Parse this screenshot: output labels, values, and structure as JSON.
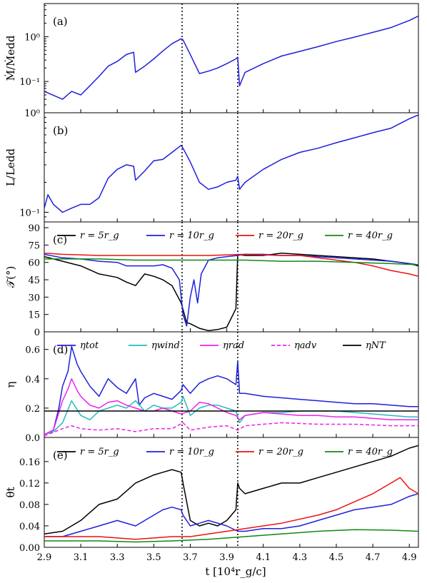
{
  "figure": {
    "xlabel": "t [10⁴r_g/c]",
    "xticks": [
      "2.9",
      "3.1",
      "3.3",
      "3.5",
      "3.7",
      "3.9",
      "4.1",
      "4.3",
      "4.5",
      "4.7",
      "4.9"
    ],
    "xlim": [
      2.9,
      4.95
    ],
    "vlines_x": [
      3.655,
      3.96
    ]
  },
  "chart_data": [
    {
      "type": "line",
      "panel_label": "(a)",
      "ylabel": "Ṁ/Ṁedd",
      "yscale": "log",
      "ylim": [
        0.02,
        5.5
      ],
      "yticks": [
        "10⁻¹",
        "10⁰"
      ],
      "series": [
        {
          "color": "#1f1fdd",
          "x": [
            2.9,
            3.0,
            3.05,
            3.1,
            3.15,
            3.2,
            3.25,
            3.3,
            3.35,
            3.39,
            3.4,
            3.45,
            3.5,
            3.55,
            3.6,
            3.65,
            3.66,
            3.7,
            3.75,
            3.8,
            3.85,
            3.9,
            3.95,
            3.96,
            3.97,
            4.0,
            4.1,
            4.2,
            4.3,
            4.4,
            4.5,
            4.6,
            4.7,
            4.8,
            4.9,
            4.95
          ],
          "y": [
            0.06,
            0.04,
            0.06,
            0.05,
            0.08,
            0.13,
            0.22,
            0.28,
            0.4,
            0.45,
            0.16,
            0.22,
            0.32,
            0.48,
            0.7,
            0.9,
            0.85,
            0.4,
            0.15,
            0.17,
            0.2,
            0.25,
            0.32,
            0.35,
            0.08,
            0.16,
            0.25,
            0.37,
            0.47,
            0.6,
            0.78,
            0.98,
            1.25,
            1.6,
            2.3,
            2.9
          ]
        }
      ]
    },
    {
      "type": "line",
      "panel_label": "(b)",
      "ylabel": "L/Ledd",
      "yscale": "log",
      "ylim": [
        0.08,
        1.0
      ],
      "yticks": [
        "10⁻¹",
        "10⁰"
      ],
      "series": [
        {
          "color": "#1f1fdd",
          "x": [
            2.9,
            2.92,
            2.95,
            3.0,
            3.05,
            3.1,
            3.15,
            3.2,
            3.25,
            3.3,
            3.35,
            3.39,
            3.4,
            3.45,
            3.5,
            3.55,
            3.6,
            3.65,
            3.66,
            3.7,
            3.75,
            3.8,
            3.85,
            3.9,
            3.95,
            3.96,
            3.97,
            4.0,
            4.1,
            4.2,
            4.3,
            4.4,
            4.5,
            4.6,
            4.7,
            4.8,
            4.9,
            4.95
          ],
          "y": [
            0.11,
            0.15,
            0.12,
            0.1,
            0.11,
            0.12,
            0.12,
            0.14,
            0.22,
            0.27,
            0.3,
            0.29,
            0.21,
            0.26,
            0.33,
            0.34,
            0.4,
            0.47,
            0.44,
            0.32,
            0.2,
            0.17,
            0.18,
            0.2,
            0.21,
            0.23,
            0.17,
            0.2,
            0.27,
            0.34,
            0.4,
            0.44,
            0.5,
            0.56,
            0.63,
            0.7,
            0.87,
            0.95
          ]
        }
      ]
    },
    {
      "type": "line",
      "panel_label": "(c)",
      "ylabel": "𝒯(°)",
      "ylim": [
        0,
        95
      ],
      "yticks": [
        "0",
        "15",
        "30",
        "45",
        "60",
        "75",
        "90"
      ],
      "legend": [
        "r = 5r_g",
        "r = 10r_g",
        "r = 20r_g",
        "r = 40r_g"
      ],
      "series": [
        {
          "name": "r = 5r_g",
          "color": "#000000",
          "x": [
            2.9,
            3.0,
            3.1,
            3.2,
            3.3,
            3.35,
            3.4,
            3.45,
            3.5,
            3.55,
            3.6,
            3.65,
            3.68,
            3.7,
            3.75,
            3.8,
            3.85,
            3.9,
            3.95,
            3.96,
            4.0,
            4.1,
            4.2,
            4.3,
            4.4,
            4.5,
            4.6,
            4.7,
            4.8,
            4.9,
            4.95
          ],
          "y": [
            65,
            61,
            57,
            50,
            47,
            43,
            40,
            50,
            48,
            45,
            40,
            25,
            8,
            7,
            3,
            1,
            2,
            4,
            20,
            67,
            66,
            66,
            68,
            67,
            66,
            65,
            64,
            63,
            61,
            59,
            57
          ]
        },
        {
          "name": "r = 10r_g",
          "color": "#1f1fdd",
          "x": [
            2.9,
            3.0,
            3.1,
            3.2,
            3.3,
            3.35,
            3.4,
            3.5,
            3.55,
            3.6,
            3.64,
            3.66,
            3.68,
            3.7,
            3.72,
            3.74,
            3.76,
            3.8,
            3.85,
            3.9,
            3.96,
            4.0,
            4.1,
            4.2,
            4.3,
            4.4,
            4.5,
            4.6,
            4.7,
            4.8,
            4.9,
            4.95
          ],
          "y": [
            67,
            64,
            63,
            61,
            60,
            57,
            57,
            57,
            58,
            55,
            45,
            15,
            5,
            30,
            45,
            25,
            50,
            62,
            64,
            65,
            66,
            67,
            67,
            66,
            66,
            65,
            64,
            63,
            62,
            61,
            59,
            58
          ]
        },
        {
          "name": "r = 20r_g",
          "color": "#ee1111",
          "x": [
            2.9,
            3.0,
            3.2,
            3.4,
            3.6,
            3.8,
            4.0,
            4.2,
            4.3,
            4.4,
            4.5,
            4.6,
            4.7,
            4.8,
            4.9,
            4.95
          ],
          "y": [
            68,
            67,
            66,
            66,
            66,
            66,
            67,
            66,
            66,
            64,
            62,
            60,
            57,
            53,
            50,
            48
          ]
        },
        {
          "name": "r = 40r_g",
          "color": "#118811",
          "x": [
            2.9,
            3.0,
            3.2,
            3.4,
            3.6,
            3.8,
            4.0,
            4.2,
            4.4,
            4.6,
            4.8,
            4.95
          ],
          "y": [
            63,
            63,
            63,
            62,
            62,
            62,
            62,
            61,
            61,
            60,
            59,
            58
          ]
        }
      ]
    },
    {
      "type": "line",
      "panel_label": "(d)",
      "ylabel": "η",
      "ylim": [
        0,
        0.72
      ],
      "yticks": [
        "0.0",
        "0.2",
        "0.4",
        "0.6"
      ],
      "legend": [
        "ηtot",
        "ηwind",
        "ηrad",
        "ηadv",
        "ηNT"
      ],
      "series": [
        {
          "name": "ηtot",
          "color": "#1f1fdd",
          "x": [
            2.9,
            2.95,
            2.98,
            3.0,
            3.03,
            3.05,
            3.08,
            3.1,
            3.15,
            3.2,
            3.25,
            3.3,
            3.35,
            3.4,
            3.42,
            3.45,
            3.5,
            3.55,
            3.6,
            3.65,
            3.66,
            3.7,
            3.75,
            3.8,
            3.85,
            3.9,
            3.95,
            3.96,
            3.97,
            4.0,
            4.1,
            4.2,
            4.3,
            4.4,
            4.5,
            4.6,
            4.7,
            4.8,
            4.9,
            4.95
          ],
          "y": [
            0.02,
            0.05,
            0.2,
            0.35,
            0.45,
            0.62,
            0.5,
            0.45,
            0.35,
            0.28,
            0.4,
            0.34,
            0.3,
            0.4,
            0.22,
            0.27,
            0.3,
            0.28,
            0.26,
            0.32,
            0.36,
            0.3,
            0.37,
            0.4,
            0.42,
            0.4,
            0.36,
            0.52,
            0.3,
            0.3,
            0.28,
            0.27,
            0.26,
            0.25,
            0.24,
            0.23,
            0.23,
            0.22,
            0.21,
            0.21
          ]
        },
        {
          "name": "ηwind",
          "color": "#22bbbb",
          "x": [
            2.9,
            2.95,
            3.0,
            3.05,
            3.1,
            3.15,
            3.2,
            3.3,
            3.35,
            3.4,
            3.45,
            3.5,
            3.55,
            3.6,
            3.65,
            3.66,
            3.7,
            3.75,
            3.8,
            3.85,
            3.9,
            3.95,
            3.97,
            4.0,
            4.1,
            4.2,
            4.3,
            4.4,
            4.5,
            4.6,
            4.7,
            4.8,
            4.9,
            4.95
          ],
          "y": [
            0.02,
            0.04,
            0.1,
            0.25,
            0.15,
            0.12,
            0.18,
            0.22,
            0.2,
            0.25,
            0.18,
            0.22,
            0.2,
            0.2,
            0.24,
            0.28,
            0.15,
            0.2,
            0.22,
            0.22,
            0.2,
            0.18,
            0.1,
            0.15,
            0.17,
            0.17,
            0.18,
            0.18,
            0.18,
            0.17,
            0.16,
            0.15,
            0.14,
            0.14
          ]
        },
        {
          "name": "ηrad",
          "color": "#ee22ee",
          "x": [
            2.9,
            2.95,
            3.0,
            3.03,
            3.05,
            3.08,
            3.1,
            3.15,
            3.2,
            3.25,
            3.3,
            3.35,
            3.4,
            3.45,
            3.5,
            3.55,
            3.6,
            3.65,
            3.7,
            3.75,
            3.8,
            3.85,
            3.9,
            3.95,
            3.97,
            4.0,
            4.1,
            4.2,
            4.3,
            4.4,
            4.5,
            4.6,
            4.7,
            4.8,
            4.9,
            4.95
          ],
          "y": [
            0.02,
            0.05,
            0.25,
            0.33,
            0.4,
            0.32,
            0.28,
            0.22,
            0.2,
            0.24,
            0.25,
            0.22,
            0.2,
            0.18,
            0.18,
            0.2,
            0.18,
            0.16,
            0.18,
            0.24,
            0.23,
            0.2,
            0.17,
            0.15,
            0.12,
            0.15,
            0.17,
            0.16,
            0.15,
            0.15,
            0.14,
            0.14,
            0.13,
            0.12,
            0.12,
            0.12
          ]
        },
        {
          "name": "ηadv",
          "color": "#ee22ee",
          "dashed": true,
          "x": [
            2.9,
            3.0,
            3.05,
            3.1,
            3.2,
            3.3,
            3.4,
            3.5,
            3.6,
            3.66,
            3.7,
            3.8,
            3.9,
            3.96,
            4.0,
            4.2,
            4.4,
            4.6,
            4.8,
            4.95
          ],
          "y": [
            0.01,
            0.06,
            0.08,
            0.06,
            0.05,
            0.06,
            0.04,
            0.06,
            0.06,
            0.1,
            0.05,
            0.07,
            0.08,
            0.05,
            0.08,
            0.1,
            0.09,
            0.09,
            0.08,
            0.08
          ]
        },
        {
          "name": "ηNT",
          "color": "#000000",
          "x": [
            2.9,
            4.95
          ],
          "y": [
            0.18,
            0.18
          ]
        }
      ]
    },
    {
      "type": "line",
      "panel_label": "(e)",
      "ylabel": "θt",
      "ylim": [
        0,
        0.205
      ],
      "yticks": [
        "0.00",
        "0.04",
        "0.08",
        "0.12",
        "0.16"
      ],
      "legend": [
        "r = 5r_g",
        "r = 10r_g",
        "r = 20r_g",
        "r = 40r_g"
      ],
      "series": [
        {
          "name": "r = 5r_g",
          "color": "#000000",
          "x": [
            2.9,
            3.0,
            3.1,
            3.15,
            3.2,
            3.3,
            3.4,
            3.5,
            3.55,
            3.6,
            3.65,
            3.66,
            3.7,
            3.75,
            3.8,
            3.85,
            3.9,
            3.95,
            3.96,
            3.97,
            4.0,
            4.1,
            4.2,
            4.3,
            4.4,
            4.5,
            4.6,
            4.7,
            4.8,
            4.9,
            4.95
          ],
          "y": [
            0.025,
            0.03,
            0.05,
            0.065,
            0.08,
            0.09,
            0.12,
            0.135,
            0.14,
            0.145,
            0.14,
            0.12,
            0.05,
            0.04,
            0.045,
            0.04,
            0.05,
            0.07,
            0.12,
            0.11,
            0.1,
            0.11,
            0.12,
            0.12,
            0.13,
            0.14,
            0.15,
            0.16,
            0.17,
            0.185,
            0.19
          ]
        },
        {
          "name": "r = 10r_g",
          "color": "#1f1fdd",
          "x": [
            2.9,
            3.0,
            3.1,
            3.2,
            3.3,
            3.4,
            3.5,
            3.55,
            3.6,
            3.65,
            3.66,
            3.7,
            3.75,
            3.8,
            3.9,
            3.96,
            4.0,
            4.1,
            4.2,
            4.3,
            4.4,
            4.5,
            4.6,
            4.7,
            4.8,
            4.9,
            4.95
          ],
          "y": [
            0.02,
            0.02,
            0.03,
            0.04,
            0.05,
            0.04,
            0.06,
            0.07,
            0.075,
            0.07,
            0.06,
            0.04,
            0.045,
            0.05,
            0.04,
            0.03,
            0.03,
            0.035,
            0.035,
            0.04,
            0.05,
            0.06,
            0.07,
            0.075,
            0.08,
            0.095,
            0.1
          ]
        },
        {
          "name": "r = 20r_g",
          "color": "#ee1111",
          "x": [
            2.9,
            3.0,
            3.2,
            3.4,
            3.6,
            3.7,
            3.8,
            3.9,
            4.0,
            4.2,
            4.4,
            4.5,
            4.6,
            4.7,
            4.8,
            4.85,
            4.9,
            4.95
          ],
          "y": [
            0.02,
            0.02,
            0.02,
            0.015,
            0.02,
            0.02,
            0.025,
            0.03,
            0.035,
            0.045,
            0.06,
            0.07,
            0.085,
            0.1,
            0.12,
            0.13,
            0.11,
            0.1
          ]
        },
        {
          "name": "r = 40r_g",
          "color": "#118811",
          "x": [
            2.9,
            3.0,
            3.2,
            3.4,
            3.6,
            3.8,
            4.0,
            4.2,
            4.4,
            4.6,
            4.8,
            4.95
          ],
          "y": [
            0.012,
            0.012,
            0.012,
            0.01,
            0.012,
            0.015,
            0.02,
            0.025,
            0.03,
            0.033,
            0.032,
            0.03
          ]
        }
      ]
    }
  ]
}
